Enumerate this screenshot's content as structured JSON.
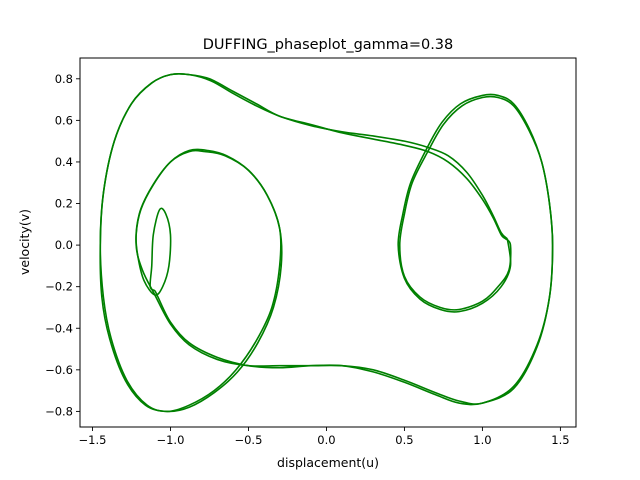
{
  "chart_data": {
    "type": "line",
    "title": "DUFFING_phaseplot_gamma=0.38",
    "xlabel": "displacement(u)",
    "ylabel": "velocity(v)",
    "xlim": [
      -1.58,
      1.6
    ],
    "ylim": [
      -0.875,
      0.9
    ],
    "grid": false,
    "legend": "none",
    "line_color": "#008000",
    "xticks": [
      {
        "value": -1.5,
        "label": "−1.5"
      },
      {
        "value": -1.0,
        "label": "−1.0"
      },
      {
        "value": -0.5,
        "label": "−0.5"
      },
      {
        "value": 0.0,
        "label": "0.0"
      },
      {
        "value": 0.5,
        "label": "0.5"
      },
      {
        "value": 1.0,
        "label": "1.0"
      },
      {
        "value": 1.5,
        "label": "1.5"
      }
    ],
    "yticks": [
      {
        "value": -0.8,
        "label": "−0.8"
      },
      {
        "value": -0.6,
        "label": "−0.6"
      },
      {
        "value": -0.4,
        "label": "−0.4"
      },
      {
        "value": -0.2,
        "label": "−0.2"
      },
      {
        "value": 0.0,
        "label": "0.0"
      },
      {
        "value": 0.2,
        "label": "0.2"
      },
      {
        "value": 0.4,
        "label": "0.4"
      },
      {
        "value": 0.6,
        "label": "0.6"
      },
      {
        "value": 0.8,
        "label": "0.8"
      }
    ],
    "series": [
      {
        "points": [
          [
            1.15,
            0.03
          ],
          [
            1.18,
            0.0
          ],
          [
            1.17,
            -0.12
          ],
          [
            1.1,
            -0.2
          ],
          [
            1.0,
            -0.27
          ],
          [
            0.85,
            -0.31
          ],
          [
            0.73,
            -0.3
          ],
          [
            0.6,
            -0.25
          ],
          [
            0.5,
            -0.15
          ],
          [
            0.47,
            0.0
          ],
          [
            0.5,
            0.15
          ],
          [
            0.55,
            0.3
          ],
          [
            0.65,
            0.45
          ],
          [
            0.75,
            0.58
          ],
          [
            0.87,
            0.67
          ],
          [
            1.0,
            0.71
          ],
          [
            1.1,
            0.71
          ],
          [
            1.2,
            0.67
          ],
          [
            1.3,
            0.55
          ],
          [
            1.38,
            0.4
          ],
          [
            1.43,
            0.2
          ],
          [
            1.45,
            0.0
          ],
          [
            1.43,
            -0.25
          ],
          [
            1.35,
            -0.48
          ],
          [
            1.2,
            -0.68
          ],
          [
            1.0,
            -0.76
          ],
          [
            0.85,
            -0.75
          ],
          [
            0.7,
            -0.71
          ],
          [
            0.5,
            -0.65
          ],
          [
            0.3,
            -0.6
          ],
          [
            0.1,
            -0.58
          ],
          [
            -0.1,
            -0.58
          ],
          [
            -0.3,
            -0.58
          ],
          [
            -0.5,
            -0.58
          ],
          [
            -0.7,
            -0.55
          ],
          [
            -0.88,
            -0.48
          ],
          [
            -1.0,
            -0.38
          ],
          [
            -1.1,
            -0.24
          ],
          [
            -1.18,
            -0.12
          ],
          [
            -1.22,
            0.0
          ],
          [
            -1.2,
            0.15
          ],
          [
            -1.12,
            0.28
          ],
          [
            -1.0,
            0.4
          ],
          [
            -0.88,
            0.45
          ],
          [
            -0.78,
            0.45
          ],
          [
            -0.65,
            0.43
          ],
          [
            -0.5,
            0.36
          ],
          [
            -0.38,
            0.24
          ],
          [
            -0.3,
            0.08
          ],
          [
            -0.3,
            -0.1
          ],
          [
            -0.35,
            -0.3
          ],
          [
            -0.45,
            -0.46
          ],
          [
            -0.58,
            -0.6
          ],
          [
            -0.72,
            -0.7
          ],
          [
            -0.88,
            -0.77
          ],
          [
            -1.02,
            -0.8
          ],
          [
            -1.15,
            -0.77
          ],
          [
            -1.28,
            -0.65
          ],
          [
            -1.38,
            -0.45
          ],
          [
            -1.43,
            -0.25
          ],
          [
            -1.45,
            0.0
          ],
          [
            -1.43,
            0.25
          ],
          [
            -1.36,
            0.5
          ],
          [
            -1.25,
            0.68
          ],
          [
            -1.12,
            0.78
          ],
          [
            -1.0,
            0.82
          ],
          [
            -0.88,
            0.82
          ],
          [
            -0.75,
            0.8
          ],
          [
            -0.6,
            0.74
          ],
          [
            -0.45,
            0.68
          ],
          [
            -0.3,
            0.62
          ],
          [
            -0.1,
            0.58
          ],
          [
            0.1,
            0.54
          ],
          [
            0.3,
            0.51
          ],
          [
            0.5,
            0.48
          ],
          [
            0.65,
            0.45
          ],
          [
            0.78,
            0.4
          ],
          [
            0.9,
            0.32
          ],
          [
            1.0,
            0.22
          ],
          [
            1.07,
            0.13
          ],
          [
            1.12,
            0.05
          ],
          [
            1.15,
            0.03
          ]
        ]
      },
      {
        "points": [
          [
            1.16,
            0.03
          ],
          [
            1.18,
            -0.1
          ],
          [
            1.12,
            -0.2
          ],
          [
            1.0,
            -0.28
          ],
          [
            0.85,
            -0.32
          ],
          [
            0.73,
            -0.31
          ],
          [
            0.6,
            -0.26
          ],
          [
            0.5,
            -0.16
          ],
          [
            0.46,
            0.0
          ],
          [
            0.49,
            0.15
          ],
          [
            0.54,
            0.3
          ],
          [
            0.64,
            0.46
          ],
          [
            0.74,
            0.59
          ],
          [
            0.86,
            0.68
          ],
          [
            1.0,
            0.72
          ],
          [
            1.1,
            0.72
          ],
          [
            1.2,
            0.68
          ],
          [
            1.3,
            0.56
          ],
          [
            1.38,
            0.4
          ],
          [
            1.43,
            0.2
          ],
          [
            1.45,
            0.0
          ],
          [
            1.43,
            -0.25
          ],
          [
            1.35,
            -0.49
          ],
          [
            1.2,
            -0.69
          ],
          [
            1.0,
            -0.76
          ],
          [
            0.85,
            -0.76
          ],
          [
            0.7,
            -0.72
          ],
          [
            0.5,
            -0.66
          ],
          [
            0.3,
            -0.61
          ],
          [
            0.1,
            -0.58
          ],
          [
            -0.1,
            -0.58
          ],
          [
            -0.3,
            -0.59
          ],
          [
            -0.5,
            -0.58
          ],
          [
            -0.7,
            -0.54
          ],
          [
            -0.88,
            -0.47
          ],
          [
            -1.0,
            -0.37
          ],
          [
            -1.08,
            -0.25
          ],
          [
            -1.1,
            -0.22
          ],
          [
            -1.13,
            -0.2
          ],
          [
            -1.12,
            -0.1
          ],
          [
            -1.11,
            0.05
          ],
          [
            -1.07,
            0.17
          ],
          [
            -1.03,
            0.15
          ],
          [
            -1.0,
            0.05
          ],
          [
            -1.01,
            -0.1
          ],
          [
            -1.05,
            -0.2
          ],
          [
            -1.1,
            -0.24
          ],
          [
            -1.17,
            -0.17
          ],
          [
            -1.21,
            -0.05
          ],
          [
            -1.22,
            0.05
          ],
          [
            -1.19,
            0.17
          ],
          [
            -1.11,
            0.29
          ],
          [
            -1.0,
            0.4
          ],
          [
            -0.88,
            0.455
          ],
          [
            -0.76,
            0.455
          ],
          [
            -0.64,
            0.43
          ],
          [
            -0.5,
            0.36
          ],
          [
            -0.38,
            0.24
          ],
          [
            -0.3,
            0.08
          ],
          [
            -0.29,
            -0.1
          ],
          [
            -0.34,
            -0.3
          ],
          [
            -0.44,
            -0.47
          ],
          [
            -0.57,
            -0.61
          ],
          [
            -0.72,
            -0.71
          ],
          [
            -0.88,
            -0.78
          ],
          [
            -1.02,
            -0.8
          ],
          [
            -1.16,
            -0.77
          ],
          [
            -1.29,
            -0.65
          ],
          [
            -1.39,
            -0.45
          ],
          [
            -1.44,
            -0.25
          ],
          [
            -1.45,
            0.0
          ],
          [
            -1.43,
            0.25
          ],
          [
            -1.36,
            0.5
          ],
          [
            -1.25,
            0.68
          ],
          [
            -1.12,
            0.78
          ],
          [
            -1.0,
            0.82
          ],
          [
            -0.88,
            0.82
          ],
          [
            -0.74,
            0.79
          ],
          [
            -0.6,
            0.73
          ],
          [
            -0.45,
            0.67
          ],
          [
            -0.3,
            0.62
          ],
          [
            -0.1,
            0.575
          ],
          [
            0.1,
            0.545
          ],
          [
            0.3,
            0.525
          ],
          [
            0.5,
            0.5
          ],
          [
            0.65,
            0.47
          ],
          [
            0.78,
            0.43
          ],
          [
            0.9,
            0.35
          ],
          [
            1.0,
            0.24
          ],
          [
            1.07,
            0.14
          ],
          [
            1.12,
            0.06
          ],
          [
            1.16,
            0.03
          ]
        ]
      }
    ]
  }
}
